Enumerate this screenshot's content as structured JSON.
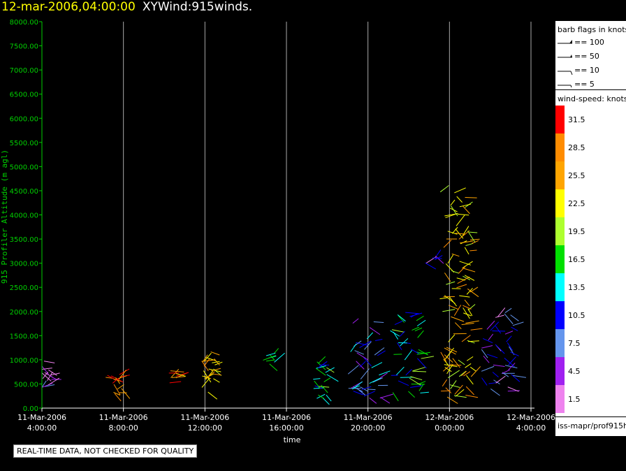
{
  "header": {
    "timestamp": "12-mar-2006,04:00:00",
    "plot_name": "XYWind:915winds."
  },
  "legend": {
    "barb_title": "barb flags in knots",
    "barbs": [
      "== 100",
      "== 50",
      "== 10",
      "== 5"
    ],
    "speed_title": "wind-speed: knots",
    "source": "iss-mapr/prof915h"
  },
  "footer": {
    "quality_note": "REAL-TIME DATA, NOT CHECKED FOR QUALITY"
  },
  "colors": {
    "axis_y": "#00d000",
    "axis_x": "#ffffff",
    "gridline": "#aaaaaa",
    "title_time": "#ffff00"
  },
  "chart_data": {
    "type": "scatter",
    "title": "XYWind:915winds.",
    "xlabel": "time",
    "ylabel": "915 Profiler Altitude (m agl)",
    "ylim": [
      0,
      8000
    ],
    "yticks": [
      "0.00",
      "500.00",
      "1000.00",
      "1500.00",
      "2000.00",
      "2500.00",
      "3000.00",
      "3500.00",
      "4000.00",
      "4500.00",
      "5000.00",
      "5500.00",
      "6000.00",
      "6500.00",
      "7000.00",
      "7500.00",
      "8000.00"
    ],
    "xlim_hours": [
      0,
      24
    ],
    "xticks": [
      {
        "date": "11-Mar-2006",
        "time": "4:00:00"
      },
      {
        "date": "11-Mar-2006",
        "time": "8:00:00"
      },
      {
        "date": "11-Mar-2006",
        "time": "12:00:00"
      },
      {
        "date": "11-Mar-2006",
        "time": "16:00:00"
      },
      {
        "date": "11-Mar-2006",
        "time": "20:00:00"
      },
      {
        "date": "12-Mar-2006",
        "time": "0:00:00"
      },
      {
        "date": "12-Mar-2006",
        "time": "4:00:00"
      }
    ],
    "grid": true,
    "colorbar": {
      "title": "wind-speed: knots",
      "levels": [
        31.5,
        28.5,
        25.5,
        22.5,
        19.5,
        16.5,
        13.5,
        10.5,
        7.5,
        4.5,
        1.5
      ],
      "colors": [
        "#ff0000",
        "#ff8c00",
        "#ffa500",
        "#ffff00",
        "#adff2f",
        "#00e000",
        "#00ffff",
        "#0000ff",
        "#6495ed",
        "#a020f0",
        "#ee82ee"
      ]
    },
    "barb_clusters": [
      {
        "time": "11-Mar 4:00",
        "alt_range_m": [
          400,
          1000
        ],
        "speed_kt": 4
      },
      {
        "time": "11-Mar 7:20",
        "alt_range_m": [
          600,
          700
        ],
        "speed_kt": 28
      },
      {
        "time": "11-Mar 7:40",
        "alt_range_m": [
          300,
          700
        ],
        "speed_kt": 28
      },
      {
        "time": "11-Mar 10:10",
        "alt_range_m": [
          500,
          800
        ],
        "speed_kt": 28
      },
      {
        "time": "11-Mar 12:00",
        "alt_range_m": [
          300,
          1200
        ],
        "speed_kt": 25
      },
      {
        "time": "11-Mar 15:00",
        "alt_range_m": [
          900,
          1200
        ],
        "speed_kt": 17
      },
      {
        "time": "11-Mar 17:30",
        "alt_range_m": [
          200,
          1000
        ],
        "speed_kt": 15
      },
      {
        "time": "11-Mar 19:30",
        "alt_range_m": [
          200,
          1800
        ],
        "speed_kt": 10
      },
      {
        "time": "11-Mar 21:30",
        "alt_range_m": [
          300,
          2000
        ],
        "speed_kt": 14
      },
      {
        "time": "11-Mar 23:00",
        "alt_range_m": [
          3000,
          3200
        ],
        "speed_kt": 6
      },
      {
        "time": "12-Mar 0:00",
        "alt_range_m": [
          200,
          4500
        ],
        "speed_kt": 25
      },
      {
        "time": "12-Mar 2:00",
        "alt_range_m": [
          300,
          2000
        ],
        "speed_kt": 7
      }
    ]
  }
}
